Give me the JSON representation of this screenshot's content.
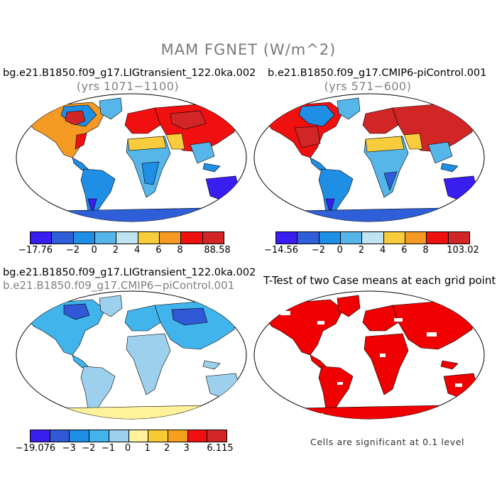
{
  "title": "MAM FGNET (W/m^2)",
  "panels": [
    {
      "case": "bg.e21.B1850.f09_g17.LIGtransient_122.0ka.002",
      "years": "(yrs 1071−1100)",
      "colorbar": {
        "colors": [
          "#3a1ef0",
          "#2f5fd8",
          "#1f8fe6",
          "#56b6ea",
          "#bfe3f2",
          "#f8cc3a",
          "#f59a23",
          "#f01010",
          "#d22626"
        ],
        "labels": [
          "−17.76",
          "−2",
          "0",
          "2",
          "4",
          "6",
          "8",
          "88.58"
        ]
      }
    },
    {
      "case": "b.e21.B1850.f09_g17.CMIP6-piControl.001",
      "years": "(yrs 571−600)",
      "colorbar": {
        "colors": [
          "#3a1ef0",
          "#2f5fd8",
          "#1f8fe6",
          "#56b6ea",
          "#bfe3f2",
          "#f8cc3a",
          "#f59a23",
          "#f01010",
          "#d22626"
        ],
        "labels": [
          "−14.56",
          "−2",
          "0",
          "2",
          "4",
          "6",
          "8",
          "103.02"
        ]
      }
    },
    {
      "case": "bg.e21.B1850.f09_g17.LIGtransient_122.0ka.002",
      "case2": "b.e21.B1850.f09_g17.CMIP6−piControl.001",
      "colorbar": {
        "colors": [
          "#3a1ef0",
          "#3158d6",
          "#1f8fe6",
          "#41b4ec",
          "#9cd0ec",
          "#fff29a",
          "#f7c933",
          "#f5a01c",
          "#f01010",
          "#d22626"
        ],
        "labels": [
          "−19.076",
          "−3",
          "−2",
          "−1",
          "0",
          "1",
          "2",
          "3",
          "6.115"
        ]
      }
    },
    {
      "title": "T-Test of two Case means at each grid point",
      "note": "Cells are significant at 0.1 level"
    }
  ]
}
